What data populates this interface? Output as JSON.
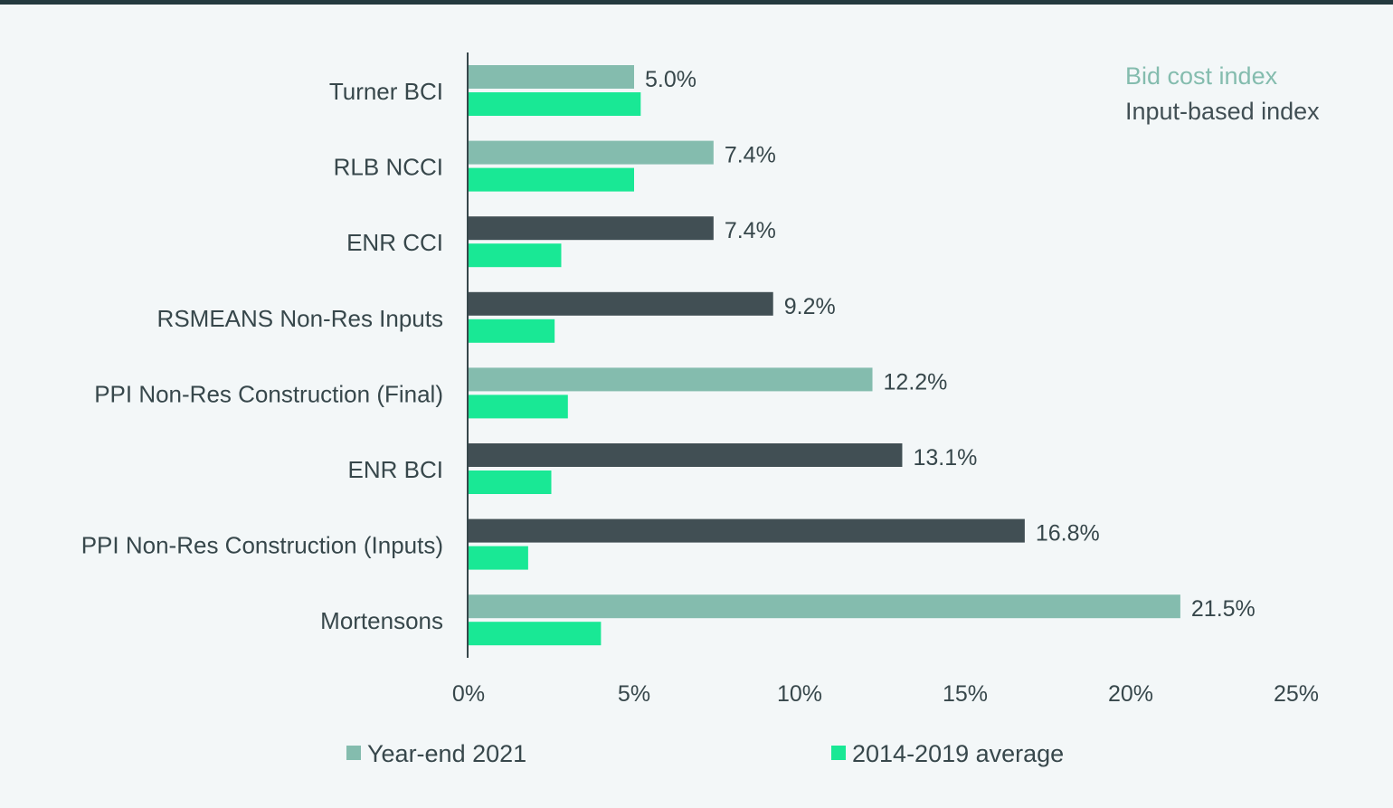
{
  "chart_data": {
    "type": "bar",
    "orientation": "horizontal",
    "categories": [
      "Turner BCI",
      "RLB NCCI",
      "ENR CCI",
      "RSMEANS Non-Res Inputs",
      "PPI Non-Res Construction (Final)",
      "ENR BCI",
      "PPI Non-Res Construction (Inputs)",
      "Mortensons"
    ],
    "index_type": [
      "bid",
      "bid",
      "input",
      "input",
      "bid",
      "input",
      "input",
      "bid"
    ],
    "series": [
      {
        "name": "Year-end 2021",
        "values": [
          5.0,
          7.4,
          7.4,
          9.2,
          12.2,
          13.1,
          16.8,
          21.5
        ],
        "data_labels": [
          "5.0%",
          "7.4%",
          "7.4%",
          "9.2%",
          "12.2%",
          "13.1%",
          "16.8%",
          "21.5%"
        ]
      },
      {
        "name": "2014-2019 average",
        "values": [
          5.2,
          5.0,
          2.8,
          2.6,
          3.0,
          2.5,
          1.8,
          4.0
        ]
      }
    ],
    "xlim": [
      0,
      25
    ],
    "xticks": [
      0,
      5,
      10,
      15,
      20,
      25
    ],
    "xtick_labels": [
      "0%",
      "5%",
      "10%",
      "15%",
      "20%",
      "25%"
    ],
    "index_types": {
      "bid": {
        "label": "Bid cost index",
        "color": "#84bcae"
      },
      "input": {
        "label": "Input-based index",
        "color": "#414f54"
      }
    },
    "colors": {
      "year_end": "#84bcae",
      "average": "#19e895",
      "axis": "#37474b",
      "text": "#37474b"
    },
    "legend_position": "bottom",
    "grid": false
  }
}
